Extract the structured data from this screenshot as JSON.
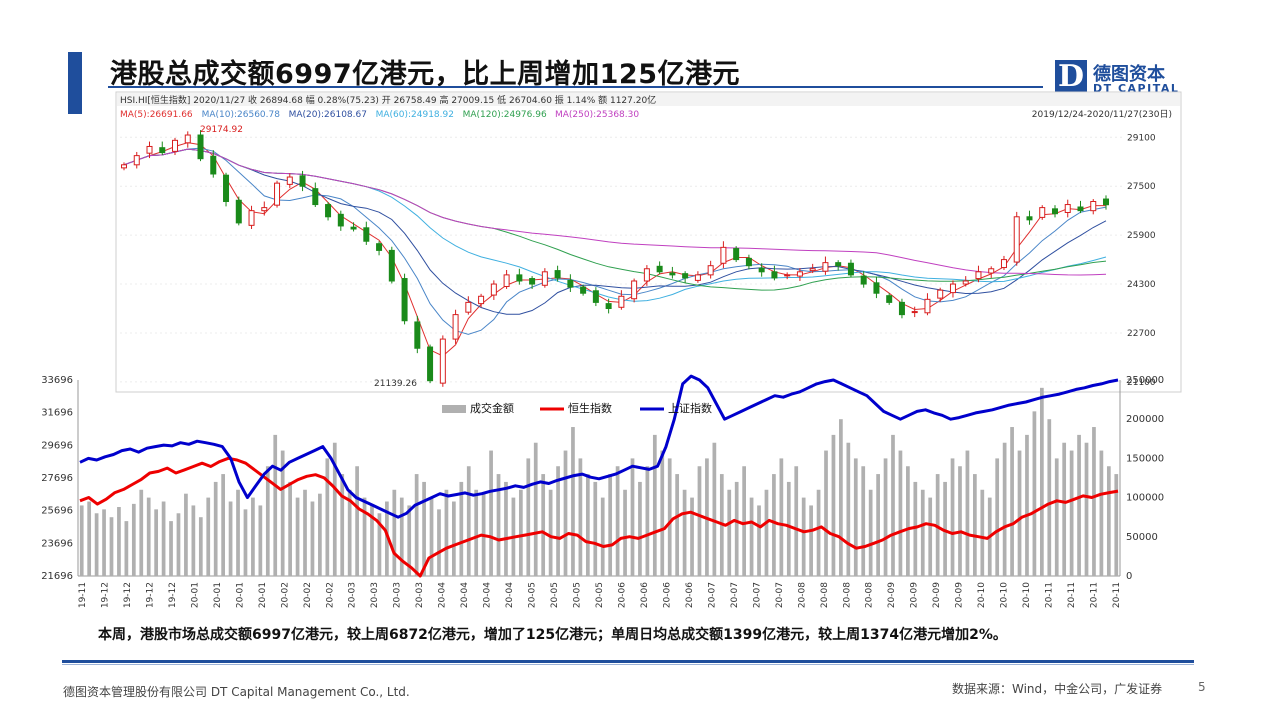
{
  "slide": {
    "title": "港股总成交额6997亿港元，比上周增加125亿港元",
    "summary": "本周，港股市场总成交额6997亿港元，较上周6872亿港元，增加了125亿港元；单周日均总成交额1399亿港元，较上周1374亿港元增加2%。",
    "footer_left": "德图资本管理股份有限公司 DT Capital Management Co., Ltd.",
    "footer_right": "数据来源：Wind，中金公司，广发证券",
    "page_number": "5",
    "logo_mark": "D",
    "logo_cn": "德图资本",
    "logo_en": "DT CAPITAL"
  },
  "colors": {
    "brand_blue": "#1f4e9c",
    "candle_up": "#d81e1e",
    "candle_down": "#1a8a1a",
    "hsi_red": "#ee0000",
    "sse_blue": "#0000cc",
    "volume_gray": "#b0b0b0"
  },
  "chart_data": [
    {
      "type": "candlestick",
      "header_line1": "HSI.HI[恒生指数]  2020/11/27  收 26894.68  幅 0.28%(75.23)  开 26758.49  高 27009.15  低 26704.60  振 1.14%  额 1127.20亿",
      "header_line2_ma": [
        {
          "label": "MA(5):26691.66",
          "color": "#e03030"
        },
        {
          "label": "MA(10):26560.78",
          "color": "#4a86c8"
        },
        {
          "label": "MA(20):26108.67",
          "color": "#3050a0"
        },
        {
          "label": "MA(60):24918.92",
          "color": "#40b0e0"
        },
        {
          "label": "MA(120):24976.96",
          "color": "#30a050"
        },
        {
          "label": "MA(250):25368.30",
          "color": "#c040c0"
        }
      ],
      "date_range": "2019/12/24-2020/11/27(230日)",
      "y_ticks": [
        "29100",
        "27500",
        "25900",
        "24300",
        "22700",
        "21100"
      ],
      "ylim": [
        20900,
        29600
      ],
      "annotations": [
        "29174.92",
        "21139.26"
      ],
      "close_approx": [
        28200,
        28500,
        28800,
        28600,
        29000,
        29174,
        28400,
        27900,
        27000,
        26300,
        26700,
        26800,
        27600,
        27800,
        27500,
        26900,
        26500,
        26200,
        26100,
        25700,
        25400,
        24400,
        23100,
        22200,
        21139,
        22500,
        23300,
        23700,
        23900,
        24300,
        24600,
        24400,
        24300,
        24700,
        24500,
        24200,
        24000,
        23700,
        23500,
        23900,
        24400,
        24800,
        24700,
        24600,
        24500,
        24600,
        24900,
        25500,
        25100,
        24900,
        24700,
        24500,
        24600,
        24700,
        24800,
        25000,
        24900,
        24600,
        24300,
        24000,
        23700,
        23300,
        23400,
        23800,
        24100,
        24300,
        24400,
        24700,
        24800,
        25100,
        26500,
        26400,
        26800,
        26600,
        26900,
        26700,
        27000,
        26894
      ]
    },
    {
      "type": "bar+line",
      "legend": [
        "成交金额",
        "恒生指数",
        "上证指数"
      ],
      "y_left_ticks": [
        "33696",
        "31696",
        "29696",
        "27696",
        "25696",
        "23696",
        "21696"
      ],
      "y_left_lim": [
        21696,
        33696
      ],
      "y_right_ticks": [
        "250000",
        "200000",
        "150000",
        "100000",
        "50000",
        "0"
      ],
      "y_right_lim": [
        0,
        250000
      ],
      "x_labels": [
        "19-11",
        "19-12",
        "19-12",
        "19-12",
        "19-12",
        "20-01",
        "20-01",
        "20-01",
        "20-01",
        "20-02",
        "20-02",
        "20-02",
        "20-03",
        "20-03",
        "20-03",
        "20-03",
        "20-04",
        "20-04",
        "20-04",
        "20-04",
        "20-05",
        "20-05",
        "20-05",
        "20-05",
        "20-06",
        "20-06",
        "20-06",
        "20-06",
        "20-07",
        "20-07",
        "20-07",
        "20-07",
        "20-08",
        "20-08",
        "20-08",
        "20-08",
        "20-09",
        "20-09",
        "20-09",
        "20-09",
        "20-10",
        "20-10",
        "20-10",
        "20-11",
        "20-11",
        "20-11",
        "20-11"
      ],
      "series": [
        {
          "name": "成交金额",
          "kind": "bar",
          "axis": "right",
          "color": "#b0b0b0",
          "values_approx": [
            90000,
            95000,
            80000,
            85000,
            75000,
            88000,
            70000,
            92000,
            110000,
            100000,
            85000,
            95000,
            70000,
            80000,
            105000,
            90000,
            75000,
            100000,
            120000,
            130000,
            95000,
            110000,
            85000,
            100000,
            90000,
            140000,
            180000,
            160000,
            120000,
            100000,
            110000,
            95000,
            105000,
            150000,
            170000,
            130000,
            110000,
            140000,
            100000,
            90000,
            80000,
            95000,
            110000,
            100000,
            90000,
            130000,
            120000,
            100000,
            85000,
            110000,
            95000,
            120000,
            140000,
            110000,
            105000,
            160000,
            130000,
            120000,
            100000,
            110000,
            150000,
            170000,
            130000,
            110000,
            140000,
            160000,
            190000,
            150000,
            130000,
            120000,
            100000,
            130000,
            140000,
            110000,
            150000,
            120000,
            140000,
            180000,
            160000,
            150000,
            130000,
            110000,
            100000,
            140000,
            150000,
            170000,
            130000,
            110000,
            120000,
            140000,
            100000,
            90000,
            110000,
            130000,
            150000,
            120000,
            140000,
            100000,
            90000,
            110000,
            160000,
            180000,
            200000,
            170000,
            150000,
            140000,
            110000,
            130000,
            150000,
            180000,
            160000,
            140000,
            120000,
            110000,
            100000,
            130000,
            120000,
            150000,
            140000,
            160000,
            130000,
            110000,
            100000,
            150000,
            170000,
            190000,
            160000,
            180000,
            210000,
            240000,
            200000,
            150000,
            170000,
            160000,
            180000,
            170000,
            190000,
            160000,
            140000,
            130000
          ]
        },
        {
          "name": "恒生指数",
          "kind": "line",
          "axis": "left",
          "color": "#ee0000",
          "values_approx": [
            26300,
            26500,
            26100,
            26400,
            26800,
            27000,
            27300,
            27600,
            28000,
            28100,
            28300,
            28000,
            28200,
            28400,
            28600,
            28400,
            28700,
            28900,
            28800,
            28600,
            28200,
            27800,
            27400,
            27000,
            27300,
            27600,
            27800,
            27900,
            27700,
            27200,
            26600,
            26300,
            25800,
            25500,
            25100,
            24500,
            23100,
            22600,
            22200,
            21696,
            22800,
            23100,
            23400,
            23600,
            23800,
            24000,
            24200,
            24100,
            23900,
            24000,
            24100,
            24200,
            24300,
            24400,
            24100,
            24000,
            24300,
            24200,
            23800,
            23700,
            23500,
            23600,
            24000,
            24100,
            24000,
            24200,
            24400,
            24600,
            25200,
            25500,
            25600,
            25400,
            25200,
            25000,
            24800,
            25100,
            24900,
            25000,
            24700,
            25100,
            24900,
            24800,
            24600,
            24400,
            24500,
            24700,
            24300,
            24100,
            23700,
            23400,
            23500,
            23700,
            23900,
            24200,
            24400,
            24600,
            24700,
            24900,
            24800,
            24500,
            24300,
            24400,
            24200,
            24100,
            24000,
            24400,
            24700,
            24900,
            25300,
            25500,
            25800,
            26100,
            26300,
            26200,
            26400,
            26600,
            26500,
            26700,
            26800,
            26894
          ]
        },
        {
          "name": "上证指数",
          "kind": "line",
          "axis": "right",
          "color": "#0000cc",
          "values_approx": [
            145000,
            150000,
            148000,
            152000,
            155000,
            160000,
            162000,
            158000,
            163000,
            165000,
            167000,
            166000,
            170000,
            168000,
            172000,
            170000,
            168000,
            165000,
            150000,
            120000,
            100000,
            115000,
            130000,
            140000,
            135000,
            145000,
            150000,
            155000,
            160000,
            165000,
            150000,
            130000,
            110000,
            100000,
            95000,
            90000,
            85000,
            80000,
            75000,
            80000,
            90000,
            95000,
            100000,
            105000,
            102000,
            104000,
            106000,
            103000,
            105000,
            108000,
            110000,
            112000,
            115000,
            113000,
            117000,
            120000,
            118000,
            122000,
            125000,
            128000,
            130000,
            126000,
            124000,
            127000,
            130000,
            135000,
            140000,
            138000,
            136000,
            140000,
            165000,
            200000,
            245000,
            255000,
            250000,
            240000,
            220000,
            200000,
            205000,
            210000,
            215000,
            220000,
            225000,
            230000,
            228000,
            232000,
            235000,
            240000,
            245000,
            248000,
            250000,
            245000,
            240000,
            235000,
            230000,
            220000,
            210000,
            205000,
            200000,
            205000,
            210000,
            212000,
            208000,
            205000,
            200000,
            202000,
            205000,
            208000,
            210000,
            212000,
            215000,
            218000,
            220000,
            222000,
            225000,
            228000,
            230000,
            232000,
            235000,
            238000,
            240000,
            243000,
            245000,
            248000,
            250000
          ]
        }
      ]
    }
  ]
}
